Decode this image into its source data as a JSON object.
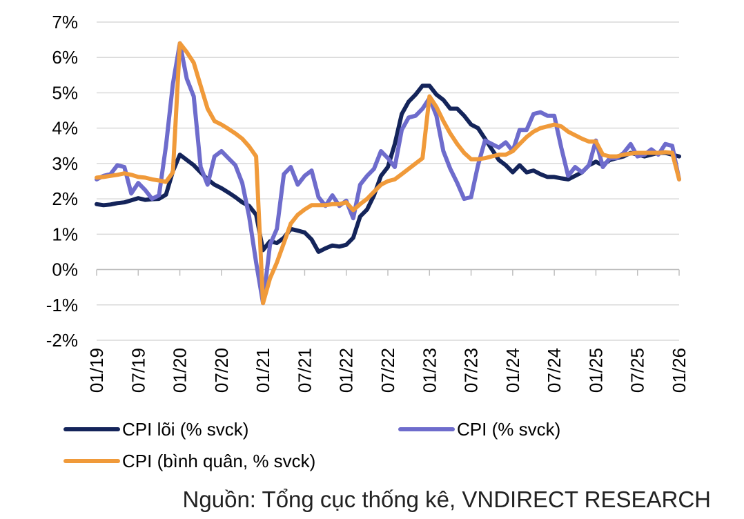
{
  "source_note": "Nguồn: Tổng cục thống kê, VNDIRECT RESEARCH",
  "chart_data": {
    "type": "line",
    "x_start": "2019-01",
    "x_end": "2026-01",
    "ylim": [
      -2,
      7
    ],
    "y_ticks": [
      "-2%",
      "-1%",
      "0%",
      "1%",
      "2%",
      "3%",
      "4%",
      "5%",
      "6%",
      "7%"
    ],
    "x_ticks": [
      "01/19",
      "07/19",
      "01/20",
      "07/20",
      "01/21",
      "07/21",
      "01/22",
      "07/22",
      "01/23",
      "07/23",
      "01/24",
      "07/24",
      "01/25",
      "07/25",
      "01/26"
    ],
    "grid": "horizontal",
    "legend_position": "bottom",
    "series": [
      {
        "name": "CPI lõi (% svck)",
        "color": "#14245a",
        "points": [
          [
            "2019-01",
            1.85
          ],
          [
            "2019-02",
            1.82
          ],
          [
            "2019-03",
            1.84
          ],
          [
            "2019-04",
            1.88
          ],
          [
            "2019-05",
            1.9
          ],
          [
            "2019-06",
            1.96
          ],
          [
            "2019-07",
            2.02
          ],
          [
            "2019-08",
            1.97
          ],
          [
            "2019-09",
            1.99
          ],
          [
            "2019-10",
            2.0
          ],
          [
            "2019-11",
            2.12
          ],
          [
            "2019-12",
            2.78
          ],
          [
            "2020-01",
            3.25
          ],
          [
            "2020-02",
            3.1
          ],
          [
            "2020-03",
            2.95
          ],
          [
            "2020-04",
            2.75
          ],
          [
            "2020-05",
            2.55
          ],
          [
            "2020-06",
            2.4
          ],
          [
            "2020-07",
            2.3
          ],
          [
            "2020-08",
            2.18
          ],
          [
            "2020-09",
            2.05
          ],
          [
            "2020-10",
            1.9
          ],
          [
            "2020-11",
            1.8
          ],
          [
            "2020-12",
            1.55
          ],
          [
            "2021-01",
            0.55
          ],
          [
            "2021-02",
            0.8
          ],
          [
            "2021-03",
            0.75
          ],
          [
            "2021-04",
            0.9
          ],
          [
            "2021-05",
            1.15
          ],
          [
            "2021-06",
            1.1
          ],
          [
            "2021-07",
            1.05
          ],
          [
            "2021-08",
            0.85
          ],
          [
            "2021-09",
            0.5
          ],
          [
            "2021-10",
            0.6
          ],
          [
            "2021-11",
            0.68
          ],
          [
            "2021-12",
            0.65
          ],
          [
            "2022-01",
            0.7
          ],
          [
            "2022-02",
            0.9
          ],
          [
            "2022-03",
            1.5
          ],
          [
            "2022-04",
            1.7
          ],
          [
            "2022-05",
            2.1
          ],
          [
            "2022-06",
            2.65
          ],
          [
            "2022-07",
            2.9
          ],
          [
            "2022-08",
            3.55
          ],
          [
            "2022-09",
            4.4
          ],
          [
            "2022-10",
            4.75
          ],
          [
            "2022-11",
            4.95
          ],
          [
            "2022-12",
            5.2
          ],
          [
            "2023-01",
            5.2
          ],
          [
            "2023-02",
            4.95
          ],
          [
            "2023-03",
            4.8
          ],
          [
            "2023-04",
            4.55
          ],
          [
            "2023-05",
            4.55
          ],
          [
            "2023-06",
            4.35
          ],
          [
            "2023-07",
            4.1
          ],
          [
            "2023-08",
            4.0
          ],
          [
            "2023-09",
            3.7
          ],
          [
            "2023-10",
            3.4
          ],
          [
            "2023-11",
            3.1
          ],
          [
            "2023-12",
            2.95
          ],
          [
            "2024-01",
            2.75
          ],
          [
            "2024-02",
            2.95
          ],
          [
            "2024-03",
            2.75
          ],
          [
            "2024-04",
            2.8
          ],
          [
            "2024-05",
            2.7
          ],
          [
            "2024-06",
            2.62
          ],
          [
            "2024-07",
            2.62
          ],
          [
            "2024-08",
            2.58
          ],
          [
            "2024-09",
            2.55
          ],
          [
            "2024-10",
            2.65
          ],
          [
            "2024-11",
            2.75
          ],
          [
            "2024-12",
            2.95
          ],
          [
            "2025-01",
            3.05
          ],
          [
            "2025-02",
            2.95
          ],
          [
            "2025-03",
            3.1
          ],
          [
            "2025-04",
            3.15
          ],
          [
            "2025-05",
            3.2
          ],
          [
            "2025-06",
            3.3
          ],
          [
            "2025-07",
            3.25
          ],
          [
            "2025-08",
            3.2
          ],
          [
            "2025-09",
            3.25
          ],
          [
            "2025-10",
            3.3
          ],
          [
            "2025-11",
            3.3
          ],
          [
            "2025-12",
            3.25
          ],
          [
            "2026-01",
            3.2
          ]
        ]
      },
      {
        "name": "CPI (% svck)",
        "color": "#6e6ccc",
        "points": [
          [
            "2019-01",
            2.55
          ],
          [
            "2019-02",
            2.65
          ],
          [
            "2019-03",
            2.7
          ],
          [
            "2019-04",
            2.95
          ],
          [
            "2019-05",
            2.9
          ],
          [
            "2019-06",
            2.15
          ],
          [
            "2019-07",
            2.45
          ],
          [
            "2019-08",
            2.25
          ],
          [
            "2019-09",
            2.0
          ],
          [
            "2019-10",
            2.1
          ],
          [
            "2019-11",
            3.5
          ],
          [
            "2019-12",
            5.25
          ],
          [
            "2020-01",
            6.4
          ],
          [
            "2020-02",
            5.4
          ],
          [
            "2020-03",
            4.9
          ],
          [
            "2020-04",
            2.9
          ],
          [
            "2020-05",
            2.4
          ],
          [
            "2020-06",
            3.2
          ],
          [
            "2020-07",
            3.35
          ],
          [
            "2020-08",
            3.15
          ],
          [
            "2020-09",
            2.95
          ],
          [
            "2020-10",
            2.45
          ],
          [
            "2020-11",
            1.5
          ],
          [
            "2020-12",
            0.2
          ],
          [
            "2021-01",
            -0.95
          ],
          [
            "2021-02",
            0.7
          ],
          [
            "2021-03",
            1.15
          ],
          [
            "2021-04",
            2.7
          ],
          [
            "2021-05",
            2.9
          ],
          [
            "2021-06",
            2.4
          ],
          [
            "2021-07",
            2.65
          ],
          [
            "2021-08",
            2.8
          ],
          [
            "2021-09",
            2.05
          ],
          [
            "2021-10",
            1.8
          ],
          [
            "2021-11",
            2.1
          ],
          [
            "2021-12",
            1.8
          ],
          [
            "2022-01",
            1.95
          ],
          [
            "2022-02",
            1.45
          ],
          [
            "2022-03",
            2.4
          ],
          [
            "2022-04",
            2.65
          ],
          [
            "2022-05",
            2.85
          ],
          [
            "2022-06",
            3.35
          ],
          [
            "2022-07",
            3.15
          ],
          [
            "2022-08",
            2.9
          ],
          [
            "2022-09",
            3.95
          ],
          [
            "2022-10",
            4.3
          ],
          [
            "2022-11",
            4.35
          ],
          [
            "2022-12",
            4.55
          ],
          [
            "2023-01",
            4.85
          ],
          [
            "2023-02",
            4.35
          ],
          [
            "2023-03",
            3.35
          ],
          [
            "2023-04",
            2.85
          ],
          [
            "2023-05",
            2.45
          ],
          [
            "2023-06",
            2.0
          ],
          [
            "2023-07",
            2.05
          ],
          [
            "2023-08",
            2.95
          ],
          [
            "2023-09",
            3.65
          ],
          [
            "2023-10",
            3.55
          ],
          [
            "2023-11",
            3.45
          ],
          [
            "2023-12",
            3.6
          ],
          [
            "2024-01",
            3.35
          ],
          [
            "2024-02",
            3.95
          ],
          [
            "2024-03",
            3.95
          ],
          [
            "2024-04",
            4.4
          ],
          [
            "2024-05",
            4.45
          ],
          [
            "2024-06",
            4.35
          ],
          [
            "2024-07",
            4.35
          ],
          [
            "2024-08",
            3.45
          ],
          [
            "2024-09",
            2.65
          ],
          [
            "2024-10",
            2.9
          ],
          [
            "2024-11",
            2.75
          ],
          [
            "2024-12",
            2.95
          ],
          [
            "2025-01",
            3.65
          ],
          [
            "2025-02",
            2.9
          ],
          [
            "2025-03",
            3.15
          ],
          [
            "2025-04",
            3.15
          ],
          [
            "2025-05",
            3.3
          ],
          [
            "2025-06",
            3.55
          ],
          [
            "2025-07",
            3.2
          ],
          [
            "2025-08",
            3.25
          ],
          [
            "2025-09",
            3.4
          ],
          [
            "2025-10",
            3.25
          ],
          [
            "2025-11",
            3.55
          ],
          [
            "2025-12",
            3.5
          ],
          [
            "2026-01",
            2.55
          ]
        ]
      },
      {
        "name": "CPI (bình quân, % svck)",
        "color": "#f09a3a",
        "points": [
          [
            "2019-01",
            2.6
          ],
          [
            "2019-02",
            2.62
          ],
          [
            "2019-03",
            2.65
          ],
          [
            "2019-04",
            2.68
          ],
          [
            "2019-05",
            2.72
          ],
          [
            "2019-06",
            2.68
          ],
          [
            "2019-07",
            2.62
          ],
          [
            "2019-08",
            2.6
          ],
          [
            "2019-09",
            2.55
          ],
          [
            "2019-10",
            2.52
          ],
          [
            "2019-11",
            2.48
          ],
          [
            "2019-12",
            2.75
          ],
          [
            "2020-01",
            6.4
          ],
          [
            "2020-02",
            6.15
          ],
          [
            "2020-03",
            5.85
          ],
          [
            "2020-04",
            5.2
          ],
          [
            "2020-05",
            4.55
          ],
          [
            "2020-06",
            4.2
          ],
          [
            "2020-07",
            4.1
          ],
          [
            "2020-08",
            3.98
          ],
          [
            "2020-09",
            3.85
          ],
          [
            "2020-10",
            3.7
          ],
          [
            "2020-11",
            3.48
          ],
          [
            "2020-12",
            3.2
          ],
          [
            "2021-01",
            -0.95
          ],
          [
            "2021-02",
            -0.25
          ],
          [
            "2021-03",
            0.2
          ],
          [
            "2021-04",
            0.75
          ],
          [
            "2021-05",
            1.3
          ],
          [
            "2021-06",
            1.55
          ],
          [
            "2021-07",
            1.7
          ],
          [
            "2021-08",
            1.82
          ],
          [
            "2021-09",
            1.82
          ],
          [
            "2021-10",
            1.82
          ],
          [
            "2021-11",
            1.85
          ],
          [
            "2021-12",
            1.85
          ],
          [
            "2022-01",
            1.9
          ],
          [
            "2022-02",
            1.68
          ],
          [
            "2022-03",
            1.85
          ],
          [
            "2022-04",
            2.0
          ],
          [
            "2022-05",
            2.2
          ],
          [
            "2022-06",
            2.4
          ],
          [
            "2022-07",
            2.5
          ],
          [
            "2022-08",
            2.55
          ],
          [
            "2022-09",
            2.7
          ],
          [
            "2022-10",
            2.85
          ],
          [
            "2022-11",
            3.0
          ],
          [
            "2022-12",
            3.15
          ],
          [
            "2023-01",
            4.9
          ],
          [
            "2023-02",
            4.6
          ],
          [
            "2023-03",
            4.2
          ],
          [
            "2023-04",
            3.85
          ],
          [
            "2023-05",
            3.55
          ],
          [
            "2023-06",
            3.3
          ],
          [
            "2023-07",
            3.12
          ],
          [
            "2023-08",
            3.12
          ],
          [
            "2023-09",
            3.15
          ],
          [
            "2023-10",
            3.2
          ],
          [
            "2023-11",
            3.25
          ],
          [
            "2023-12",
            3.25
          ],
          [
            "2024-01",
            3.35
          ],
          [
            "2024-02",
            3.55
          ],
          [
            "2024-03",
            3.75
          ],
          [
            "2024-04",
            3.9
          ],
          [
            "2024-05",
            4.0
          ],
          [
            "2024-06",
            4.05
          ],
          [
            "2024-07",
            4.1
          ],
          [
            "2024-08",
            4.05
          ],
          [
            "2024-09",
            3.9
          ],
          [
            "2024-10",
            3.8
          ],
          [
            "2024-11",
            3.7
          ],
          [
            "2024-12",
            3.62
          ],
          [
            "2025-01",
            3.62
          ],
          [
            "2025-02",
            3.25
          ],
          [
            "2025-03",
            3.2
          ],
          [
            "2025-04",
            3.2
          ],
          [
            "2025-05",
            3.25
          ],
          [
            "2025-06",
            3.28
          ],
          [
            "2025-07",
            3.3
          ],
          [
            "2025-08",
            3.3
          ],
          [
            "2025-09",
            3.3
          ],
          [
            "2025-10",
            3.3
          ],
          [
            "2025-11",
            3.32
          ],
          [
            "2025-12",
            3.3
          ],
          [
            "2026-01",
            2.55
          ]
        ]
      }
    ]
  }
}
